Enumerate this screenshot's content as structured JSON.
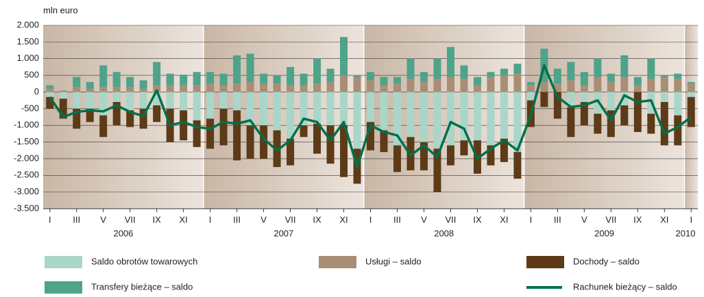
{
  "chart_data": {
    "type": "bar",
    "y_label": "mln euro",
    "categories": [
      "I",
      null,
      "III",
      null,
      "V",
      null,
      "VII",
      null,
      "IX",
      null,
      "XI",
      null,
      "I",
      null,
      "III",
      null,
      "V",
      null,
      "VII",
      null,
      "IX",
      null,
      "XI",
      null,
      "I",
      null,
      "III",
      null,
      "V",
      null,
      "VII",
      null,
      "IX",
      null,
      "XI",
      null,
      "I",
      null,
      "III",
      null,
      "V",
      null,
      "VII",
      null,
      "IX",
      null,
      "XI",
      null,
      "I"
    ],
    "years": [
      "2006",
      "2007",
      "2008",
      "2009",
      "2010"
    ],
    "ylim": [
      -3500,
      2000
    ],
    "yticks": [
      {
        "value": 2000,
        "label": "2.000"
      },
      {
        "value": 1500,
        "label": "1.500"
      },
      {
        "value": 1000,
        "label": "1.000"
      },
      500,
      0,
      -500,
      {
        "value": -1000,
        "label": "-1.000"
      },
      {
        "value": -1500,
        "label": "-1.500"
      },
      {
        "value": -2000,
        "label": "-2.000"
      },
      {
        "value": -2500,
        "label": "-2.500"
      },
      {
        "value": -3000,
        "label": "-3.000"
      },
      {
        "value": -3500,
        "label": "-3.500"
      }
    ],
    "grid": true,
    "series": [
      {
        "name": "Saldo obrotów towarowych",
        "color": "#a9d6c9",
        "values": [
          -150,
          -200,
          -500,
          -500,
          -700,
          -300,
          -550,
          -500,
          -400,
          -500,
          -550,
          -850,
          -800,
          -500,
          -550,
          -1000,
          -1000,
          -1150,
          -1400,
          -1000,
          -950,
          -1000,
          -1000,
          -1700,
          -900,
          -1150,
          -1600,
          -1350,
          -1500,
          -1700,
          -1600,
          -1450,
          -1450,
          -1600,
          -1400,
          -1800,
          -250,
          0,
          0,
          -450,
          -300,
          -650,
          -550,
          -400,
          0,
          -650,
          -300,
          -700,
          -150
        ]
      },
      {
        "name": "Usługi – saldo",
        "color": "#a98e75",
        "values": [
          100,
          50,
          150,
          100,
          150,
          150,
          150,
          100,
          200,
          200,
          200,
          200,
          250,
          200,
          250,
          300,
          250,
          250,
          200,
          200,
          250,
          300,
          500,
          450,
          350,
          200,
          250,
          400,
          300,
          400,
          450,
          400,
          200,
          450,
          500,
          550,
          200,
          300,
          250,
          350,
          200,
          450,
          300,
          450,
          200,
          400,
          450,
          400,
          250
        ]
      },
      {
        "name": "Dochody – saldo",
        "color": "#5d3b18",
        "values": [
          -350,
          -600,
          -600,
          -400,
          -650,
          -700,
          -500,
          -600,
          -500,
          -1000,
          -900,
          -800,
          -900,
          -1100,
          -1500,
          -1000,
          -1000,
          -1100,
          -800,
          -350,
          -900,
          -1150,
          -1550,
          -1050,
          -850,
          -650,
          -800,
          -1000,
          -850,
          -1300,
          -600,
          -450,
          -1000,
          -600,
          -700,
          -800,
          -800,
          -450,
          -800,
          -900,
          -700,
          -600,
          -800,
          -600,
          -1200,
          -600,
          -1300,
          -900,
          -900
        ]
      },
      {
        "name": "Transfery bieżące – saldo",
        "color": "#4fa38a",
        "values": [
          100,
          0,
          300,
          200,
          650,
          450,
          300,
          250,
          700,
          350,
          320,
          400,
          350,
          350,
          850,
          850,
          300,
          250,
          550,
          350,
          750,
          400,
          1150,
          50,
          250,
          250,
          200,
          600,
          300,
          600,
          900,
          400,
          250,
          150,
          200,
          300,
          100,
          1000,
          450,
          550,
          400,
          550,
          250,
          650,
          250,
          600,
          50,
          150,
          50
        ]
      },
      {
        "name": "Rachunek bieżący – saldo",
        "color": "#00704a",
        "line": true,
        "values": [
          -150,
          -750,
          -600,
          -550,
          -580,
          -400,
          -600,
          -720,
          50,
          -1000,
          -900,
          -1050,
          -1100,
          -900,
          -950,
          -850,
          -1400,
          -1750,
          -1450,
          -800,
          -900,
          -1450,
          -900,
          -2250,
          -1000,
          -1200,
          -1300,
          -1900,
          -1600,
          -1950,
          -900,
          -1100,
          -2000,
          -1700,
          -1450,
          -1750,
          -700,
          800,
          -150,
          -450,
          -400,
          -250,
          -850,
          -100,
          -300,
          -250,
          -1250,
          -1050,
          -750
        ]
      }
    ]
  }
}
